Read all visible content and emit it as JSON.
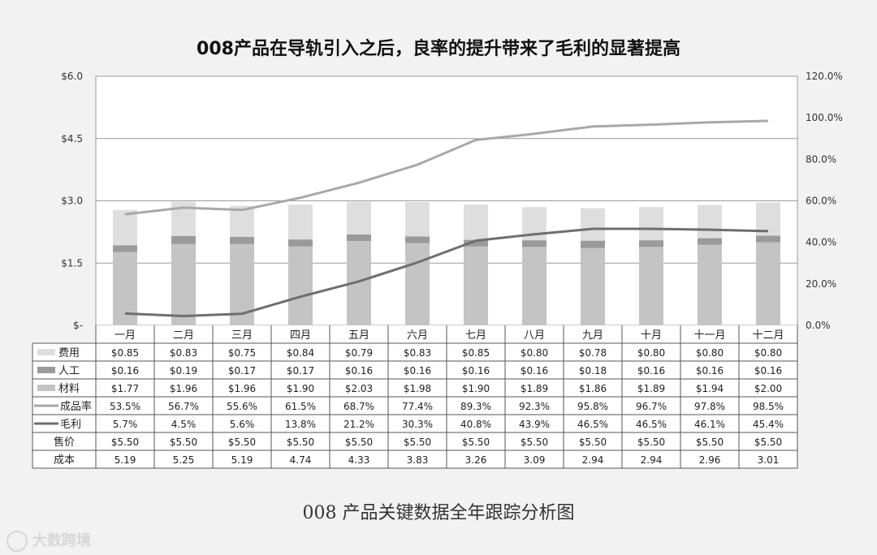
{
  "title": "008产品在导轨引入之后，良率的提升带来了毛利的显著提高",
  "caption": "008 产品关键数据全年跟踪分析图",
  "watermark": "大数跨境",
  "chart_data": {
    "type": "bar",
    "stacked": true,
    "categories": [
      "一月",
      "二月",
      "三月",
      "四月",
      "五月",
      "六月",
      "七月",
      "八月",
      "九月",
      "十月",
      "十一月",
      "十二月"
    ],
    "left_axis": {
      "ylim": [
        0,
        6.0
      ],
      "ticks": [
        {
          "value": 0,
          "label": "$-"
        },
        {
          "value": 1.5,
          "label": "$1.5"
        },
        {
          "value": 3.0,
          "label": "$3.0"
        },
        {
          "value": 4.5,
          "label": "$4.5"
        },
        {
          "value": 6.0,
          "label": "$6.0"
        }
      ]
    },
    "right_axis": {
      "ylim": [
        0,
        120
      ],
      "ticks": [
        "0.0%",
        "20.0%",
        "40.0%",
        "60.0%",
        "80.0%",
        "100.0%",
        "120.0%"
      ]
    },
    "gridlines": true,
    "bar_series": [
      {
        "name": "材料",
        "color": "#c4c4c4",
        "values": [
          1.77,
          1.96,
          1.96,
          1.9,
          2.03,
          1.98,
          1.9,
          1.89,
          1.86,
          1.89,
          1.94,
          2.0
        ],
        "labels": [
          "$1.77",
          "$1.96",
          "$1.96",
          "$1.90",
          "$2.03",
          "$1.98",
          "$1.90",
          "$1.89",
          "$1.86",
          "$1.89",
          "$1.94",
          "$2.00"
        ]
      },
      {
        "name": "人工",
        "color": "#9a9a9a",
        "values": [
          0.16,
          0.19,
          0.17,
          0.17,
          0.16,
          0.16,
          0.16,
          0.16,
          0.18,
          0.16,
          0.16,
          0.16
        ],
        "labels": [
          "$0.16",
          "$0.19",
          "$0.17",
          "$0.17",
          "$0.16",
          "$0.16",
          "$0.16",
          "$0.16",
          "$0.18",
          "$0.16",
          "$0.16",
          "$0.16"
        ]
      },
      {
        "name": "费用",
        "color": "#dedede",
        "values": [
          0.85,
          0.83,
          0.75,
          0.84,
          0.79,
          0.83,
          0.85,
          0.8,
          0.78,
          0.8,
          0.8,
          0.8
        ],
        "labels": [
          "$0.85",
          "$0.83",
          "$0.75",
          "$0.84",
          "$0.79",
          "$0.83",
          "$0.85",
          "$0.80",
          "$0.78",
          "$0.80",
          "$0.80",
          "$0.80"
        ]
      }
    ],
    "line_series": [
      {
        "name": "成品率",
        "color": "#a8a8a8",
        "values": [
          53.5,
          56.7,
          55.6,
          61.5,
          68.7,
          77.4,
          89.3,
          92.3,
          95.8,
          96.7,
          97.8,
          98.5
        ],
        "labels": [
          "53.5%",
          "56.7%",
          "55.6%",
          "61.5%",
          "68.7%",
          "77.4%",
          "89.3%",
          "92.3%",
          "95.8%",
          "96.7%",
          "97.8%",
          "98.5%"
        ]
      },
      {
        "name": "毛利",
        "color": "#6e6e6e",
        "values": [
          5.7,
          4.5,
          5.6,
          13.8,
          21.2,
          30.3,
          40.8,
          43.9,
          46.5,
          46.5,
          46.1,
          45.4
        ],
        "labels": [
          "5.7%",
          "4.5%",
          "5.6%",
          "13.8%",
          "21.2%",
          "30.3%",
          "40.8%",
          "43.9%",
          "46.5%",
          "46.5%",
          "46.1%",
          "45.4%"
        ]
      }
    ],
    "extra_rows": [
      {
        "name": "售价",
        "values": [
          "$5.50",
          "$5.50",
          "$5.50",
          "$5.50",
          "$5.50",
          "$5.50",
          "$5.50",
          "$5.50",
          "$5.50",
          "$5.50",
          "$5.50",
          "$5.50"
        ]
      },
      {
        "name": "成本",
        "values": [
          "5.19",
          "5.25",
          "5.19",
          "4.74",
          "4.33",
          "3.83",
          "3.26",
          "3.09",
          "2.94",
          "2.94",
          "2.96",
          "3.01"
        ]
      }
    ]
  }
}
